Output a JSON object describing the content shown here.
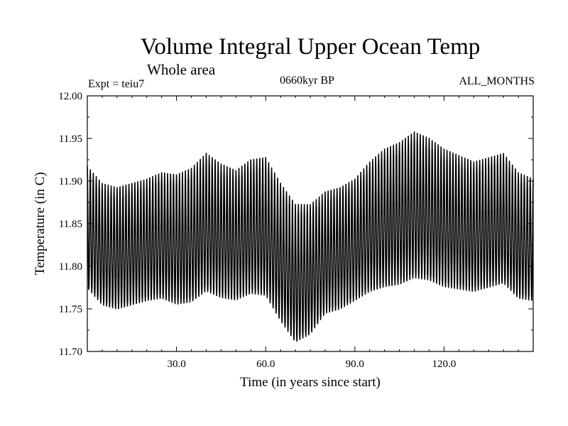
{
  "header": {
    "title": "Volume Integral Upper Ocean Temp",
    "subtitle": "Whole area",
    "experiment": "Expt = teiu7",
    "period": "0660kyr BP",
    "months": "ALL_MONTHS"
  },
  "chart_data": {
    "type": "line",
    "title": "Volume Integral Upper Ocean Temp",
    "subtitle": "Whole area",
    "xlabel": "Time (in years since start)",
    "ylabel": "Temperature (in C)",
    "xlim": [
      0,
      150
    ],
    "ylim": [
      11.7,
      12.0
    ],
    "x_ticks": [
      30,
      60,
      90,
      120
    ],
    "x_tick_labels": [
      "30.0",
      "60.0",
      "90.0",
      "120.0"
    ],
    "y_ticks": [
      11.7,
      11.75,
      11.8,
      11.85,
      11.9,
      11.95,
      12.0
    ],
    "y_tick_labels": [
      "11.70",
      "11.75",
      "11.80",
      "11.85",
      "11.90",
      "11.95",
      "12.00"
    ],
    "grid": false,
    "samples_per_year": 12,
    "series": [
      {
        "name": "teiu7 ALL_MONTHS",
        "description": "monthly values oscillating around a slowly varying annual mean",
        "annual_mean_x": [
          0,
          5,
          10,
          15,
          20,
          25,
          30,
          35,
          40,
          45,
          50,
          55,
          60,
          65,
          70,
          75,
          80,
          85,
          90,
          95,
          100,
          105,
          110,
          115,
          120,
          125,
          130,
          135,
          140,
          145,
          150
        ],
        "annual_mean": [
          11.84,
          11.82,
          11.815,
          11.82,
          11.825,
          11.83,
          11.825,
          11.83,
          11.845,
          11.835,
          11.83,
          11.84,
          11.84,
          11.81,
          11.785,
          11.79,
          11.81,
          11.815,
          11.825,
          11.84,
          11.85,
          11.855,
          11.865,
          11.86,
          11.85,
          11.845,
          11.84,
          11.845,
          11.85,
          11.83,
          11.825
        ],
        "seasonal_amplitude_x": [
          0,
          10,
          20,
          30,
          40,
          50,
          60,
          70,
          80,
          90,
          100,
          110,
          120,
          130,
          140,
          150
        ],
        "seasonal_amplitude": [
          0.075,
          0.075,
          0.075,
          0.08,
          0.085,
          0.08,
          0.085,
          0.085,
          0.075,
          0.075,
          0.085,
          0.09,
          0.085,
          0.08,
          0.08,
          0.075
        ]
      }
    ]
  }
}
